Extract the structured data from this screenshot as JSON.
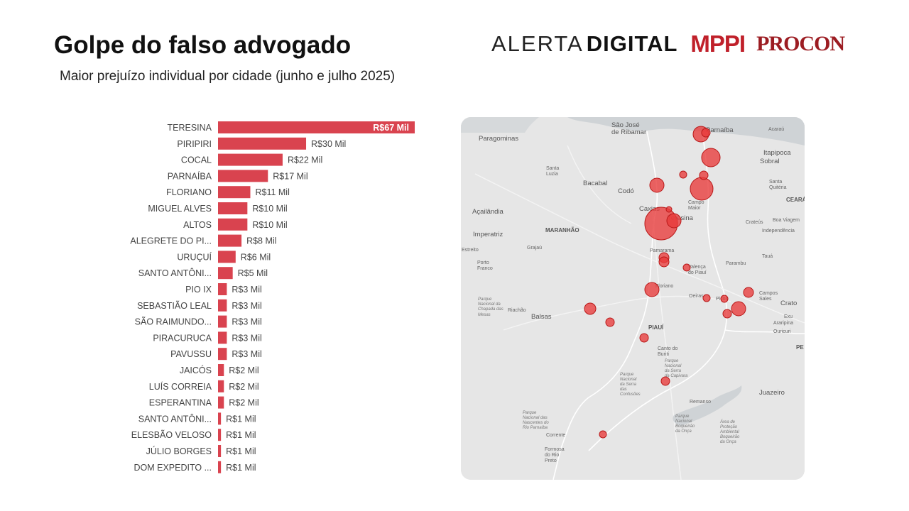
{
  "header": {
    "title": "Golpe do falso advogado",
    "subtitle": "Maior prejuízo individual por cidade (junho e julho 2025)"
  },
  "logos": {
    "alerta": "ALERTA",
    "digital": "DIGITAL",
    "mppi": "MPPI",
    "procon": "PROCON"
  },
  "colors": {
    "bar": "#d9434f",
    "bubble_fill": "#e83a3a",
    "bubble_stroke": "#b81818",
    "map_bg": "#e6e6e6",
    "ocean": "#cfd3d6"
  },
  "chart_data": {
    "type": "bar",
    "orientation": "horizontal",
    "categories": [
      "TERESINA",
      "PIRIPIRI",
      "COCAL",
      "PARNAÍBA",
      "FLORIANO",
      "MIGUEL ALVES",
      "ALTOS",
      "ALEGRETE DO PI...",
      "URUÇUÍ",
      "SANTO ANTÔNI...",
      "PIO IX",
      "SEBASTIÃO LEAL",
      "SÃO RAIMUNDO...",
      "PIRACURUCA",
      "PAVUSSU",
      "JAICÓS",
      "LUÍS CORREIA",
      "ESPERANTINA",
      "SANTO ANTÔNI...",
      "ELESBÃO VELOSO",
      "JÚLIO BORGES",
      "DOM EXPEDITO ..."
    ],
    "values": [
      67,
      30,
      22,
      17,
      11,
      10,
      10,
      8,
      6,
      5,
      3,
      3,
      3,
      3,
      3,
      2,
      2,
      2,
      1,
      1,
      1,
      1
    ],
    "value_labels": [
      "R$67 Mil",
      "R$30 Mil",
      "R$22 Mil",
      "R$17 Mil",
      "R$11 Mil",
      "R$10 Mil",
      "R$10 Mil",
      "R$8 Mil",
      "R$6 Mil",
      "R$5 Mil",
      "R$3 Mil",
      "R$3 Mil",
      "R$3 Mil",
      "R$3 Mil",
      "R$3 Mil",
      "R$2 Mil",
      "R$2 Mil",
      "R$2 Mil",
      "R$1 Mil",
      "R$1 Mil",
      "R$1 Mil",
      "R$1 Mil"
    ],
    "unit": "Mil",
    "xlim": [
      0,
      67
    ]
  },
  "map": {
    "labels": [
      {
        "text": "São José",
        "cls": "city"
      },
      {
        "text": "de Ribamar",
        "cls": "city"
      },
      {
        "text": "Paragominas",
        "cls": "city"
      },
      {
        "text": "Parnaíba",
        "cls": "city"
      },
      {
        "text": "Acaraú",
        "cls": "small"
      },
      {
        "text": "Itapipoca",
        "cls": "city"
      },
      {
        "text": "Sobral",
        "cls": "city"
      },
      {
        "text": "Santa",
        "cls": "small"
      },
      {
        "text": "Luzia",
        "cls": "small"
      },
      {
        "text": "Bacabal",
        "cls": "city"
      },
      {
        "text": "Codó",
        "cls": "city"
      },
      {
        "text": "Santa",
        "cls": "small"
      },
      {
        "text": "Quitéria",
        "cls": "small"
      },
      {
        "text": "CEARÁ",
        "cls": "state"
      },
      {
        "text": "Açailândia",
        "cls": "city"
      },
      {
        "text": "Caxias",
        "cls": "city"
      },
      {
        "text": "Campo",
        "cls": "small"
      },
      {
        "text": "Maior",
        "cls": "small"
      },
      {
        "text": "Teresina",
        "cls": "city"
      },
      {
        "text": "Crateús",
        "cls": "small"
      },
      {
        "text": "Boa Viagem",
        "cls": "small"
      },
      {
        "text": "Independência",
        "cls": "small"
      },
      {
        "text": "Imperatriz",
        "cls": "city"
      },
      {
        "text": "MARANHÃO",
        "cls": "state"
      },
      {
        "text": "Grajaú",
        "cls": "small"
      },
      {
        "text": "Pamarama",
        "cls": "small"
      },
      {
        "text": "Tauá",
        "cls": "small"
      },
      {
        "text": "Estreito",
        "cls": "small"
      },
      {
        "text": "Porto",
        "cls": "small"
      },
      {
        "text": "Franco",
        "cls": "small"
      },
      {
        "text": "Valença",
        "cls": "small"
      },
      {
        "text": "do Piauí",
        "cls": "small"
      },
      {
        "text": "Parambu",
        "cls": "small"
      },
      {
        "text": "Floriano",
        "cls": "small"
      },
      {
        "text": "Oeiras",
        "cls": "small"
      },
      {
        "text": "Picos",
        "cls": "small"
      },
      {
        "text": "Campos",
        "cls": "small"
      },
      {
        "text": "Sales",
        "cls": "small"
      },
      {
        "text": "Crato",
        "cls": "city"
      },
      {
        "text": "Parque",
        "cls": "park"
      },
      {
        "text": "Nacional da",
        "cls": "park"
      },
      {
        "text": "Chapada das",
        "cls": "park"
      },
      {
        "text": "Mesas",
        "cls": "park"
      },
      {
        "text": "Riachão",
        "cls": "small"
      },
      {
        "text": "Balsas",
        "cls": "city"
      },
      {
        "text": "Exu",
        "cls": "small"
      },
      {
        "text": "Araripina",
        "cls": "small"
      },
      {
        "text": "PIAUÍ",
        "cls": "state"
      },
      {
        "text": "Ouricuri",
        "cls": "small"
      },
      {
        "text": "PE",
        "cls": "state"
      },
      {
        "text": "Canto do",
        "cls": "small"
      },
      {
        "text": "Buriti",
        "cls": "small"
      },
      {
        "text": "Parque",
        "cls": "park"
      },
      {
        "text": "Nacional",
        "cls": "park"
      },
      {
        "text": "da Serra",
        "cls": "park"
      },
      {
        "text": "da Capivara",
        "cls": "park"
      },
      {
        "text": "Parque",
        "cls": "park"
      },
      {
        "text": "Nacional",
        "cls": "park"
      },
      {
        "text": "da Serra",
        "cls": "park"
      },
      {
        "text": "das",
        "cls": "park"
      },
      {
        "text": "Confusões",
        "cls": "park"
      },
      {
        "text": "Juazeiro",
        "cls": "city"
      },
      {
        "text": "Remanso",
        "cls": "small"
      },
      {
        "text": "Parque",
        "cls": "park"
      },
      {
        "text": "Nacional das",
        "cls": "park"
      },
      {
        "text": "Nascentes do",
        "cls": "park"
      },
      {
        "text": "Rio Parnaíba",
        "cls": "park"
      },
      {
        "text": "Área de",
        "cls": "park"
      },
      {
        "text": "Proteção",
        "cls": "park"
      },
      {
        "text": "Ambiental",
        "cls": "park"
      },
      {
        "text": "Boqueirão",
        "cls": "park"
      },
      {
        "text": "da Onça",
        "cls": "park"
      },
      {
        "text": "Parque",
        "cls": "park"
      },
      {
        "text": "Nacional",
        "cls": "park"
      },
      {
        "text": "Boqueirão",
        "cls": "park"
      },
      {
        "text": "da Onça",
        "cls": "park"
      },
      {
        "text": "Corrente",
        "cls": "small"
      },
      {
        "text": "Formosa",
        "cls": "small"
      },
      {
        "text": "do Rio",
        "cls": "small"
      },
      {
        "text": "Preto",
        "cls": "small"
      }
    ]
  }
}
